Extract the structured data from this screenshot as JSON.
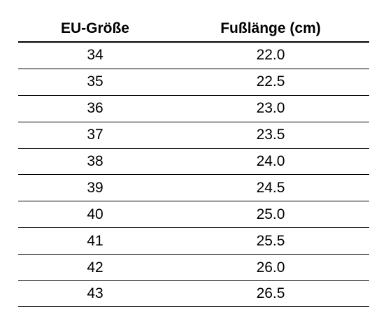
{
  "table": {
    "headers": [
      "EU-Größe",
      "Fußlänge (cm)"
    ],
    "rows": [
      [
        "34",
        "22.0"
      ],
      [
        "35",
        "22.5"
      ],
      [
        "36",
        "23.0"
      ],
      [
        "37",
        "23.5"
      ],
      [
        "38",
        "24.0"
      ],
      [
        "39",
        "24.5"
      ],
      [
        "40",
        "25.0"
      ],
      [
        "41",
        "25.5"
      ],
      [
        "42",
        "26.0"
      ],
      [
        "43",
        "26.5"
      ]
    ]
  }
}
